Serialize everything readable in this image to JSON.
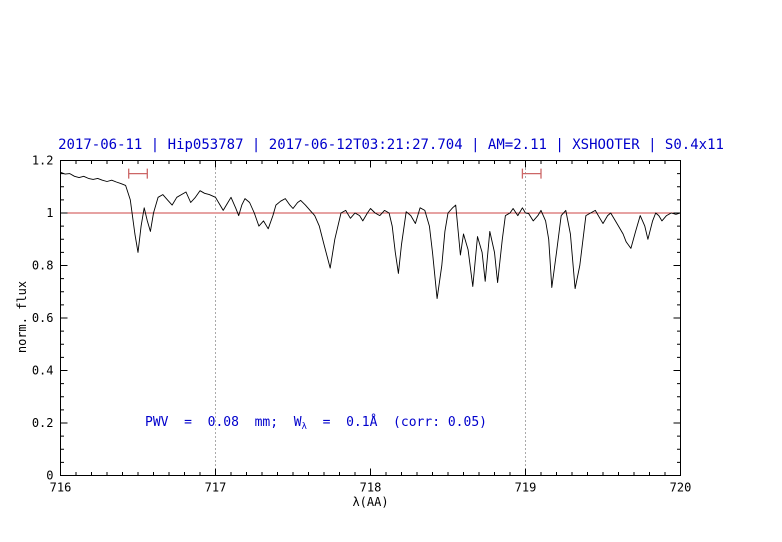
{
  "chart_data": {
    "type": "line",
    "title": "2017-06-11 | Hip053787 | 2017-06-12T03:21:27.704 | AM=2.11 | XSHOOTER | S0.4x11",
    "xlabel": "λ(AA)",
    "ylabel": "norm. flux",
    "xlim": [
      716,
      720
    ],
    "ylim": [
      0,
      1.2
    ],
    "x_ticks": [
      716,
      717,
      718,
      719,
      720
    ],
    "x_tick_labels": [
      "716",
      "717",
      "718",
      "719",
      "720"
    ],
    "y_ticks": [
      0,
      0.2,
      0.4,
      0.6,
      0.8,
      1,
      1.2
    ],
    "y_tick_labels": [
      "0",
      "0.2",
      "0.4",
      "0.6",
      "0.8",
      "1",
      "1.2"
    ],
    "grid": "off",
    "legend": "none",
    "reference_line_y": 1.0,
    "dotted_vlines": [
      717,
      719
    ],
    "range_markers": [
      {
        "x1": 716.44,
        "x2": 716.56,
        "y": 1.15
      },
      {
        "x1": 718.98,
        "x2": 719.1,
        "y": 1.15
      }
    ],
    "annotation": {
      "prefix": "PWV  =  0.08  mm;  W",
      "sub": "λ",
      "suffix": "  =  0.1Å  (corr: 0.05)",
      "x": 716.55,
      "y": 0.2
    },
    "series": [
      {
        "name": "spectrum",
        "color": "#000000",
        "x": [
          716.0,
          716.03,
          716.06,
          716.09,
          716.12,
          716.15,
          716.18,
          716.21,
          716.24,
          716.27,
          716.3,
          716.33,
          716.36,
          716.39,
          716.42,
          716.45,
          716.48,
          716.5,
          716.52,
          716.54,
          716.56,
          716.58,
          716.6,
          716.63,
          716.66,
          716.69,
          716.72,
          716.75,
          716.78,
          716.81,
          716.84,
          716.87,
          716.9,
          716.93,
          716.96,
          717.0,
          717.03,
          717.05,
          717.08,
          717.1,
          717.13,
          717.15,
          717.17,
          717.19,
          717.22,
          717.25,
          717.28,
          717.31,
          717.34,
          717.37,
          717.39,
          717.42,
          717.45,
          717.48,
          717.5,
          717.53,
          717.55,
          717.58,
          717.61,
          717.64,
          717.67,
          717.7,
          717.74,
          717.77,
          717.81,
          717.84,
          717.87,
          717.9,
          717.93,
          717.95,
          717.98,
          718.0,
          718.03,
          718.06,
          718.09,
          718.12,
          718.14,
          718.16,
          718.18,
          718.2,
          718.23,
          718.26,
          718.29,
          718.32,
          718.35,
          718.38,
          718.4,
          718.43,
          718.46,
          718.48,
          718.5,
          718.53,
          718.55,
          718.58,
          718.6,
          718.63,
          718.66,
          718.69,
          718.72,
          718.74,
          718.77,
          718.8,
          718.82,
          718.85,
          718.87,
          718.9,
          718.92,
          718.95,
          718.98,
          719.0,
          719.02,
          719.05,
          719.08,
          719.1,
          719.13,
          719.15,
          719.17,
          719.2,
          719.23,
          719.26,
          719.29,
          719.32,
          719.35,
          719.39,
          719.42,
          719.45,
          719.48,
          719.5,
          719.53,
          719.55,
          719.58,
          719.6,
          719.63,
          719.65,
          719.68,
          719.71,
          719.74,
          719.77,
          719.79,
          719.82,
          719.84,
          719.86,
          719.88,
          719.91,
          719.94,
          719.97,
          720.0
        ],
        "y": [
          1.155,
          1.148,
          1.15,
          1.14,
          1.135,
          1.14,
          1.132,
          1.128,
          1.132,
          1.125,
          1.12,
          1.125,
          1.118,
          1.112,
          1.105,
          1.05,
          0.92,
          0.85,
          0.95,
          1.02,
          0.97,
          0.93,
          1.0,
          1.06,
          1.07,
          1.05,
          1.03,
          1.06,
          1.07,
          1.08,
          1.04,
          1.06,
          1.085,
          1.075,
          1.07,
          1.06,
          1.03,
          1.01,
          1.04,
          1.06,
          1.02,
          0.99,
          1.03,
          1.055,
          1.04,
          1.0,
          0.95,
          0.97,
          0.94,
          0.99,
          1.03,
          1.045,
          1.055,
          1.03,
          1.017,
          1.04,
          1.048,
          1.03,
          1.01,
          0.99,
          0.95,
          0.88,
          0.79,
          0.9,
          1.0,
          1.01,
          0.98,
          1.0,
          0.99,
          0.97,
          1.0,
          1.017,
          1.0,
          0.99,
          1.01,
          1.0,
          0.95,
          0.85,
          0.77,
          0.88,
          1.005,
          0.99,
          0.96,
          1.02,
          1.01,
          0.95,
          0.85,
          0.674,
          0.8,
          0.93,
          1.0,
          1.02,
          1.03,
          0.84,
          0.92,
          0.86,
          0.72,
          0.91,
          0.85,
          0.74,
          0.93,
          0.85,
          0.735,
          0.9,
          0.99,
          1.0,
          1.017,
          0.99,
          1.02,
          1.0,
          0.998,
          0.97,
          0.99,
          1.01,
          0.97,
          0.9,
          0.716,
          0.85,
          0.99,
          1.01,
          0.92,
          0.712,
          0.8,
          0.99,
          1.0,
          1.01,
          0.98,
          0.96,
          0.99,
          1.0,
          0.97,
          0.95,
          0.92,
          0.89,
          0.865,
          0.93,
          0.99,
          0.95,
          0.9,
          0.97,
          1.0,
          0.99,
          0.97,
          0.99,
          1.0,
          0.995,
          1.0
        ]
      }
    ]
  },
  "colors": {
    "title_blue": "#0000cc",
    "annotation_blue": "#0000cc",
    "reference_red": "#cc4444",
    "marker_red": "#cc6666",
    "vline_grey": "#555555",
    "spectrum_black": "#000000"
  }
}
